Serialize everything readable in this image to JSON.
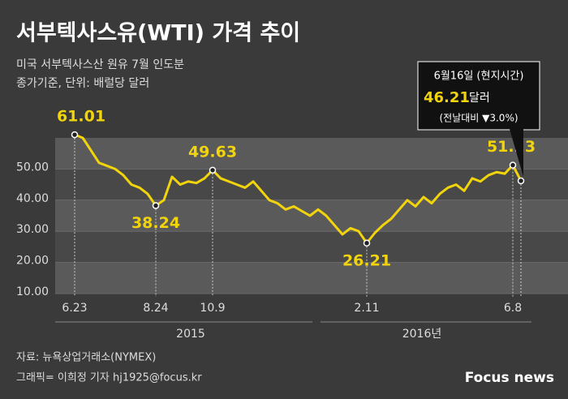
{
  "chart_data": {
    "type": "line",
    "title": "서부텍사스유(WTI) 가격 추이",
    "subtitle": [
      "미국 서부텍사스산 원유 7월 인도분",
      "종가기준, 단위: 배럴당 달러"
    ],
    "categories": [
      "6.23",
      null,
      null,
      null,
      null,
      null,
      null,
      null,
      null,
      null,
      "8.24",
      null,
      null,
      null,
      null,
      null,
      null,
      "10.9",
      null,
      null,
      null,
      null,
      null,
      null,
      null,
      null,
      null,
      null,
      null,
      null,
      null,
      null,
      null,
      null,
      null,
      null,
      "2.11",
      null,
      null,
      null,
      null,
      null,
      null,
      null,
      null,
      null,
      null,
      null,
      null,
      null,
      null,
      null,
      null,
      null,
      "6.8",
      null
    ],
    "series": [
      {
        "name": "WTI",
        "color": "#f2d40c",
        "values": [
          61.01,
          60,
          56,
          52,
          51,
          50,
          48,
          45,
          44,
          42,
          38.24,
          40,
          47.5,
          45,
          46,
          45.5,
          47,
          49.63,
          47,
          46,
          45,
          44,
          46,
          43,
          40,
          39,
          37,
          38,
          36.5,
          35,
          37,
          35,
          32,
          29,
          31,
          30,
          26.21,
          29.5,
          32,
          34,
          37,
          40,
          38,
          41,
          39,
          42,
          44,
          45,
          43,
          47,
          46,
          48,
          49,
          48.5,
          51.23,
          46.21
        ]
      }
    ],
    "ylim": [
      10,
      60
    ],
    "yticks": [
      {
        "value": 10,
        "label": "10.00"
      },
      {
        "value": 20,
        "label": "20.00"
      },
      {
        "value": 30,
        "label": "30.00"
      },
      {
        "value": 40,
        "label": "40.00"
      },
      {
        "value": 50,
        "label": "50.00"
      }
    ],
    "grid": true,
    "year_labels": [
      "2015",
      "2016년"
    ],
    "callout": {
      "date": "6월16일 (현지시간)",
      "unit": "달러",
      "change": "(전날대비  ▼3.0%)"
    },
    "source": "자료: 뉴욕상업거래소(NYMEX)",
    "credit": "그래픽= 이희정 기자 hj1925@focus.kr",
    "logo": "Focus news"
  }
}
